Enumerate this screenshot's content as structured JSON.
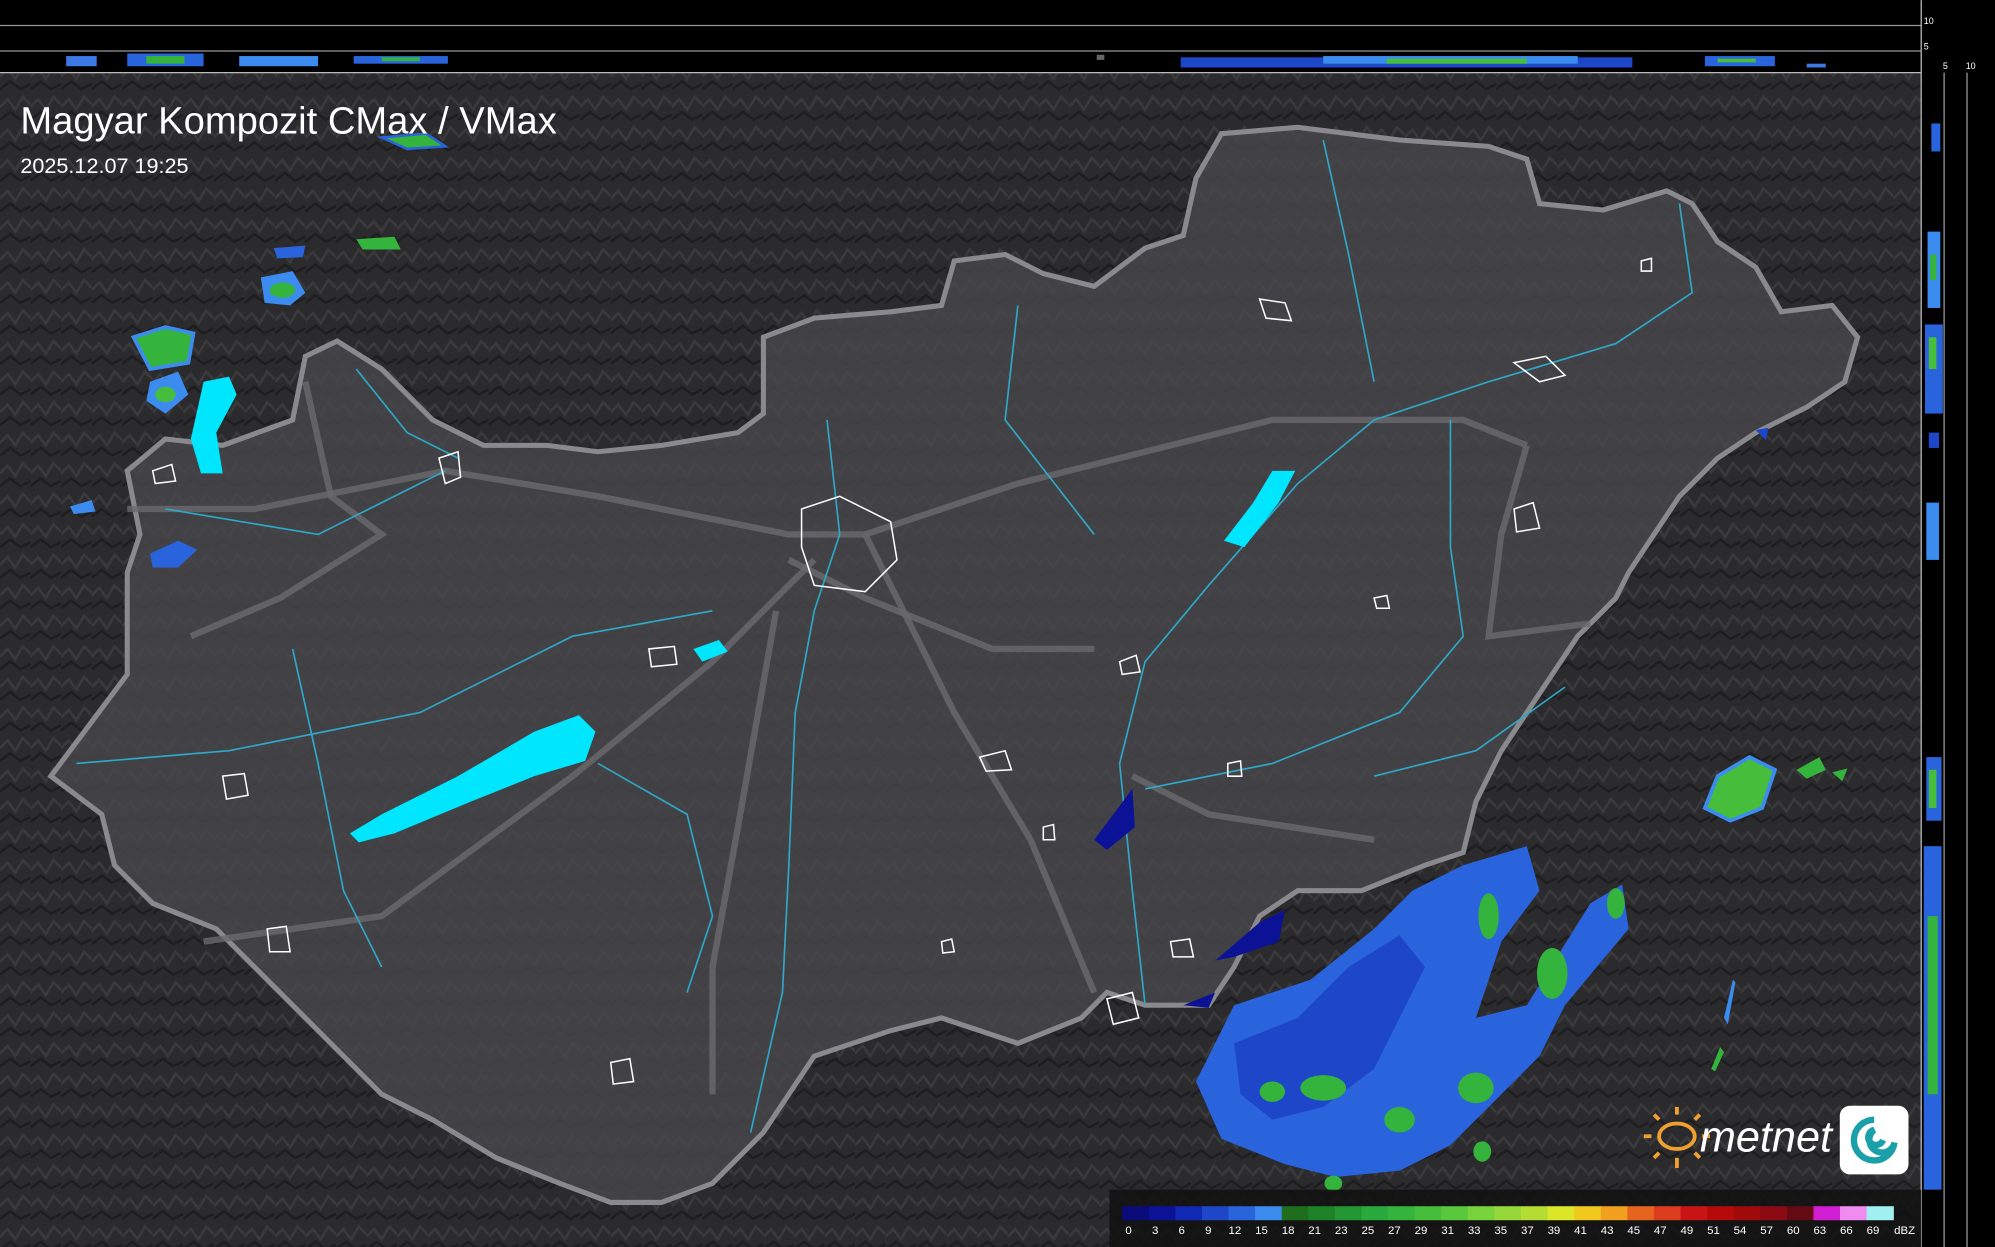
{
  "header": {
    "title": "Magyar Kompozit CMax / VMax",
    "timestamp": "2025.12.07 19:25"
  },
  "top_profile": {
    "labels": [
      "10",
      "5"
    ]
  },
  "side_profile": {
    "labels": [
      "5",
      "10"
    ]
  },
  "legend": {
    "unit": "dBZ",
    "items": [
      {
        "label": "0",
        "color": "#0a0a78"
      },
      {
        "label": "3",
        "color": "#0c1296"
      },
      {
        "label": "6",
        "color": "#1028b4"
      },
      {
        "label": "9",
        "color": "#1e46c8"
      },
      {
        "label": "12",
        "color": "#2a64dc"
      },
      {
        "label": "15",
        "color": "#3c8cf0"
      },
      {
        "label": "18",
        "color": "#1e6e1e"
      },
      {
        "label": "21",
        "color": "#1e8228"
      },
      {
        "label": "23",
        "color": "#229632"
      },
      {
        "label": "25",
        "color": "#28aa3c"
      },
      {
        "label": "27",
        "color": "#34b43c"
      },
      {
        "label": "29",
        "color": "#46be3c"
      },
      {
        "label": "31",
        "color": "#5ac83c"
      },
      {
        "label": "33",
        "color": "#78d23c"
      },
      {
        "label": "35",
        "color": "#96d73c"
      },
      {
        "label": "37",
        "color": "#b4dc32"
      },
      {
        "label": "39",
        "color": "#dce628"
      },
      {
        "label": "41",
        "color": "#f0c81e"
      },
      {
        "label": "43",
        "color": "#f0a01e"
      },
      {
        "label": "45",
        "color": "#e6641e"
      },
      {
        "label": "47",
        "color": "#dc3c1e"
      },
      {
        "label": "49",
        "color": "#c81414"
      },
      {
        "label": "51",
        "color": "#b40a0a"
      },
      {
        "label": "54",
        "color": "#a00a0a"
      },
      {
        "label": "57",
        "color": "#8c0a14"
      },
      {
        "label": "60",
        "color": "#640a14"
      },
      {
        "label": "63",
        "color": "#d21ed2"
      },
      {
        "label": "66",
        "color": "#f08cf0"
      },
      {
        "label": "69",
        "color": "#a0f0f0"
      }
    ]
  },
  "logo": {
    "text": "metnet"
  }
}
